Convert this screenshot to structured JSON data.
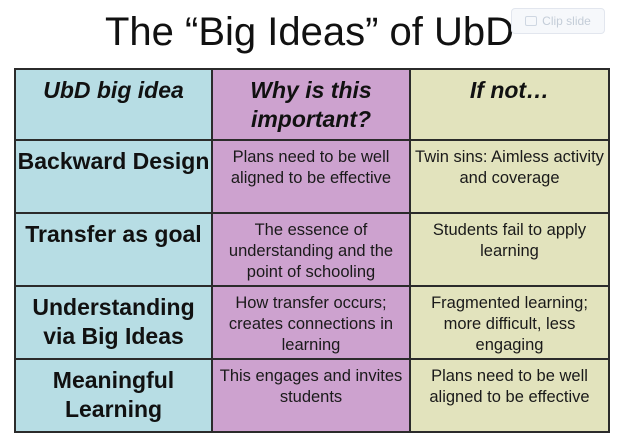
{
  "title": "The “Big Ideas” of UbD",
  "clip_button": {
    "label": "Clip slide",
    "icon": "clipboard-icon"
  },
  "table": {
    "headers": [
      "UbD big idea",
      "Why is this important?",
      "If not…"
    ],
    "rows": [
      [
        "Backward Design",
        "Plans need to be well aligned to be effective",
        "Twin sins: Aimless activity and coverage"
      ],
      [
        "Transfer as goal",
        "The essence of understanding and the point of schooling",
        "Students fail to apply learning"
      ],
      [
        "Understanding via Big Ideas",
        "How transfer occurs; creates connections in learning",
        "Fragmented learning; more difficult, less engaging"
      ],
      [
        "Meaningful Learning",
        "This engages and invites students",
        "Plans need to be well aligned to be effective"
      ]
    ]
  },
  "colors": {
    "column1": "#b7dde4",
    "column2": "#cda2cf",
    "column3": "#e2e3bd",
    "border": "#2b2b2b"
  }
}
